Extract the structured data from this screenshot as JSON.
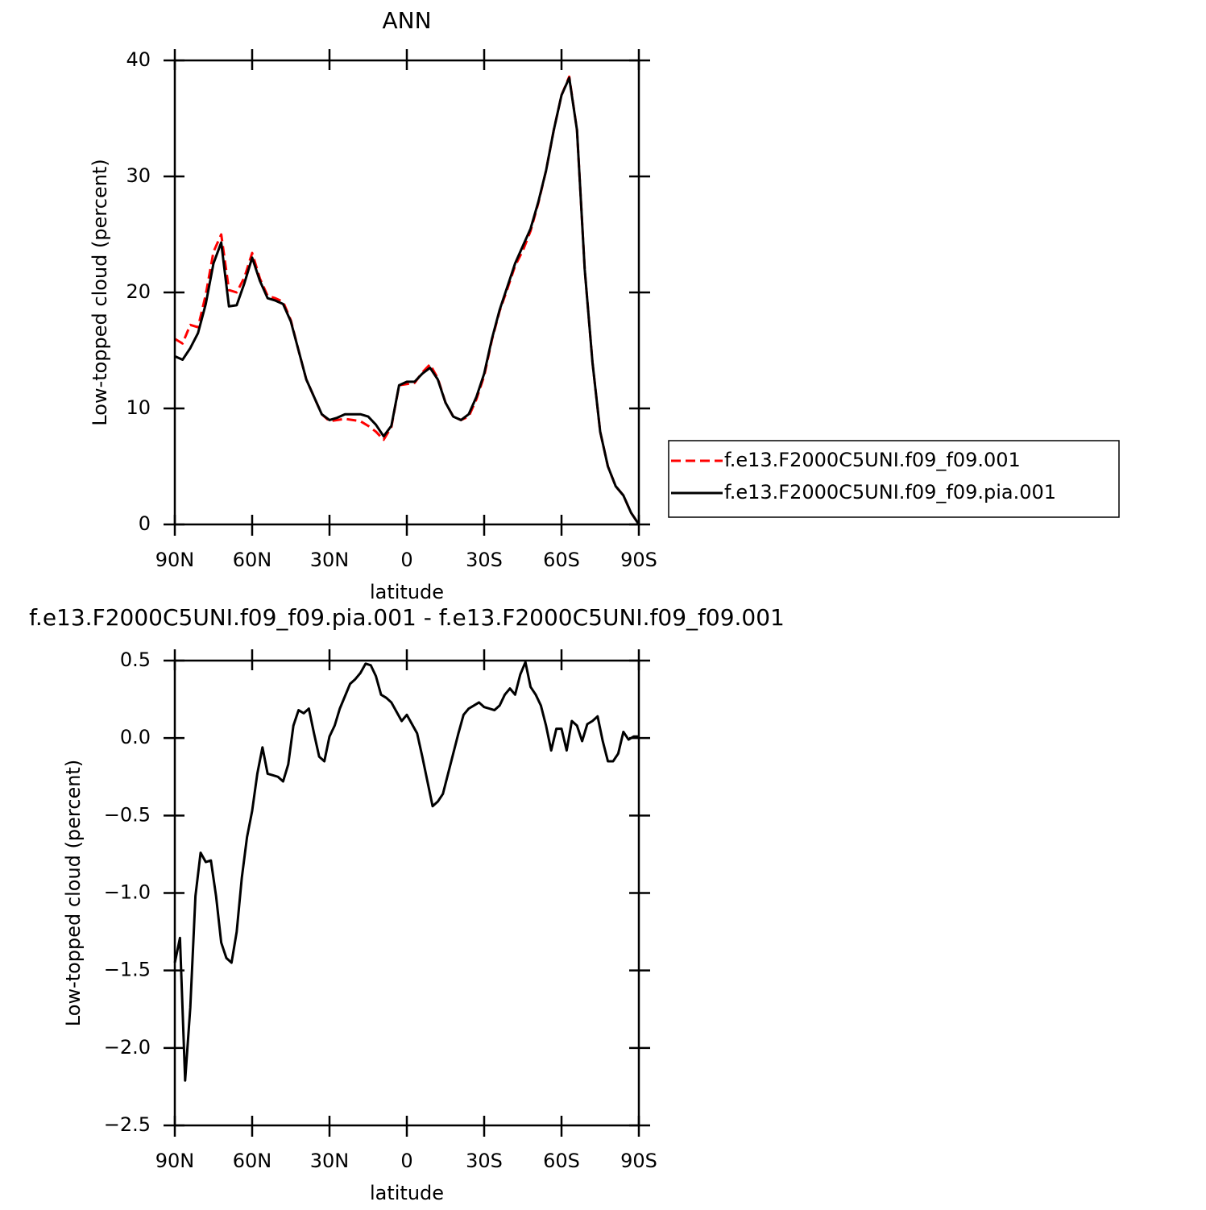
{
  "chart_data": [
    {
      "type": "line",
      "title": "ANN",
      "xlabel": "latitude",
      "ylabel": "Low-topped cloud (percent)",
      "x": [
        90,
        87,
        84,
        81,
        78,
        75,
        72,
        69,
        66,
        63,
        60,
        57,
        54,
        51,
        48,
        45,
        42,
        39,
        36,
        33,
        30,
        27,
        24,
        21,
        18,
        15,
        12,
        9,
        6,
        3,
        0,
        -3,
        -6,
        -9,
        -12,
        -15,
        -18,
        -21,
        -24,
        -27,
        -30,
        -33,
        -36,
        -39,
        -42,
        -45,
        -48,
        -51,
        -54,
        -57,
        -60,
        -63,
        -66,
        -69,
        -72,
        -75,
        -78,
        -81,
        -84,
        -87,
        -90
      ],
      "series": [
        {
          "name": "f.e13.F2000C5UNI.f09_f09.001",
          "color": "#ff0000",
          "dash": true,
          "values": [
            16,
            15.6,
            17.2,
            17,
            19.8,
            23.5,
            25,
            20.2,
            20,
            21.3,
            23.4,
            21.2,
            19.7,
            19.5,
            19.2,
            17.6,
            15,
            12.5,
            11,
            9.5,
            8.9,
            9.0,
            9.1,
            9.0,
            8.9,
            8.5,
            8.0,
            7.3,
            8.4,
            12.0,
            12.1,
            12.2,
            13.1,
            13.8,
            12.6,
            10.5,
            9.3,
            9.0,
            9.3,
            10.8,
            12.8,
            15.9,
            18.4,
            20.3,
            22.3,
            23.6,
            25.3,
            27.7,
            30.5,
            34,
            37,
            38.6,
            34,
            22,
            14,
            8,
            5,
            3.3,
            2.5,
            1,
            0
          ]
        },
        {
          "name": "f.e13.F2000C5UNI.f09_f09.pia.001",
          "color": "#000000",
          "dash": false,
          "values": [
            14.5,
            14.2,
            15.2,
            16.5,
            19,
            22.5,
            24.3,
            18.8,
            18.9,
            20.8,
            23,
            21,
            19.5,
            19.3,
            19,
            17.5,
            15,
            12.5,
            11,
            9.5,
            9.0,
            9.2,
            9.5,
            9.5,
            9.5,
            9.3,
            8.6,
            7.6,
            8.5,
            12.0,
            12.3,
            12.3,
            13,
            13.5,
            12.5,
            10.5,
            9.3,
            9.0,
            9.5,
            11,
            13,
            16,
            18.5,
            20.5,
            22.5,
            24,
            25.5,
            27.8,
            30.5,
            34,
            37,
            38.5,
            34,
            22,
            14,
            8,
            5,
            3.3,
            2.5,
            1,
            0
          ]
        }
      ],
      "xlim": [
        90,
        -90
      ],
      "xticks": [
        {
          "value": 90,
          "label": "90N"
        },
        {
          "value": 60,
          "label": "60N"
        },
        {
          "value": 30,
          "label": "30N"
        },
        0,
        {
          "value": -30,
          "label": "30S"
        },
        {
          "value": -60,
          "label": "60S"
        },
        {
          "value": -90,
          "label": "90S"
        }
      ],
      "ylim": [
        0,
        40
      ],
      "yticks": [
        0,
        10,
        20,
        30,
        40
      ],
      "legend": "right"
    },
    {
      "type": "line",
      "title": "f.e13.F2000C5UNI.f09_f09.pia.001 - f.e13.F2000C5UNI.f09_f09.001",
      "xlabel": "latitude",
      "ylabel": "Low-topped cloud (percent)",
      "x": [
        90,
        88,
        86,
        84,
        82,
        80,
        78,
        76,
        74,
        72,
        70,
        68,
        66,
        64,
        62,
        60,
        58,
        56,
        54,
        52,
        50,
        48,
        46,
        44,
        42,
        40,
        38,
        36,
        34,
        32,
        30,
        28,
        26,
        24,
        22,
        20,
        18,
        16,
        14,
        12,
        10,
        8,
        6,
        4,
        2,
        0,
        -2,
        -4,
        -6,
        -8,
        -10,
        -12,
        -14,
        -16,
        -18,
        -20,
        -22,
        -24,
        -26,
        -28,
        -30,
        -32,
        -34,
        -36,
        -38,
        -40,
        -42,
        -44,
        -46,
        -48,
        -50,
        -52,
        -54,
        -56,
        -58,
        -60,
        -62,
        -64,
        -66,
        -68,
        -70,
        -72,
        -74,
        -76,
        -78,
        -80,
        -82,
        -84,
        -86,
        -88,
        -90
      ],
      "series": [
        {
          "color": "#000000",
          "dash": false,
          "values": [
            -1.45,
            -1.29,
            -2.21,
            -1.74,
            -1.02,
            -0.74,
            -0.8,
            -0.79,
            -1.02,
            -1.32,
            -1.42,
            -1.45,
            -1.25,
            -0.9,
            -0.64,
            -0.47,
            -0.23,
            -0.06,
            -0.23,
            -0.24,
            -0.25,
            -0.28,
            -0.17,
            0.08,
            0.18,
            0.16,
            0.19,
            0.03,
            -0.12,
            -0.15,
            0.01,
            0.08,
            0.19,
            0.27,
            0.35,
            0.38,
            0.42,
            0.48,
            0.47,
            0.4,
            0.28,
            0.26,
            0.23,
            0.17,
            0.11,
            0.15,
            0.09,
            0.03,
            -0.12,
            -0.28,
            -0.44,
            -0.41,
            -0.36,
            -0.23,
            -0.1,
            0.03,
            0.15,
            0.19,
            0.21,
            0.23,
            0.2,
            0.19,
            0.18,
            0.21,
            0.28,
            0.32,
            0.28,
            0.41,
            0.49,
            0.33,
            0.28,
            0.21,
            0.08,
            -0.08,
            0.06,
            0.06,
            -0.08,
            0.11,
            0.08,
            -0.02,
            0.09,
            0.11,
            0.14,
            -0.02,
            -0.15,
            -0.15,
            -0.1,
            0.04,
            -0.01,
            0.01,
            0.01
          ]
        }
      ],
      "xlim": [
        90,
        -90
      ],
      "xticks": [
        {
          "value": 90,
          "label": "90N"
        },
        {
          "value": 60,
          "label": "60N"
        },
        {
          "value": 30,
          "label": "30N"
        },
        0,
        {
          "value": -30,
          "label": "30S"
        },
        {
          "value": -60,
          "label": "60S"
        },
        {
          "value": -90,
          "label": "90S"
        }
      ],
      "ylim": [
        -2.5,
        0.5
      ],
      "yticks": [
        0.5,
        {
          "value": 0,
          "label": "0.0"
        },
        {
          "value": -0.5,
          "label": "−0.5"
        },
        {
          "value": -1,
          "label": "−1.0"
        },
        {
          "value": -1.5,
          "label": "−1.5"
        },
        {
          "value": -2,
          "label": "−2.0"
        },
        {
          "value": -2.5,
          "label": "−2.5"
        }
      ]
    }
  ]
}
